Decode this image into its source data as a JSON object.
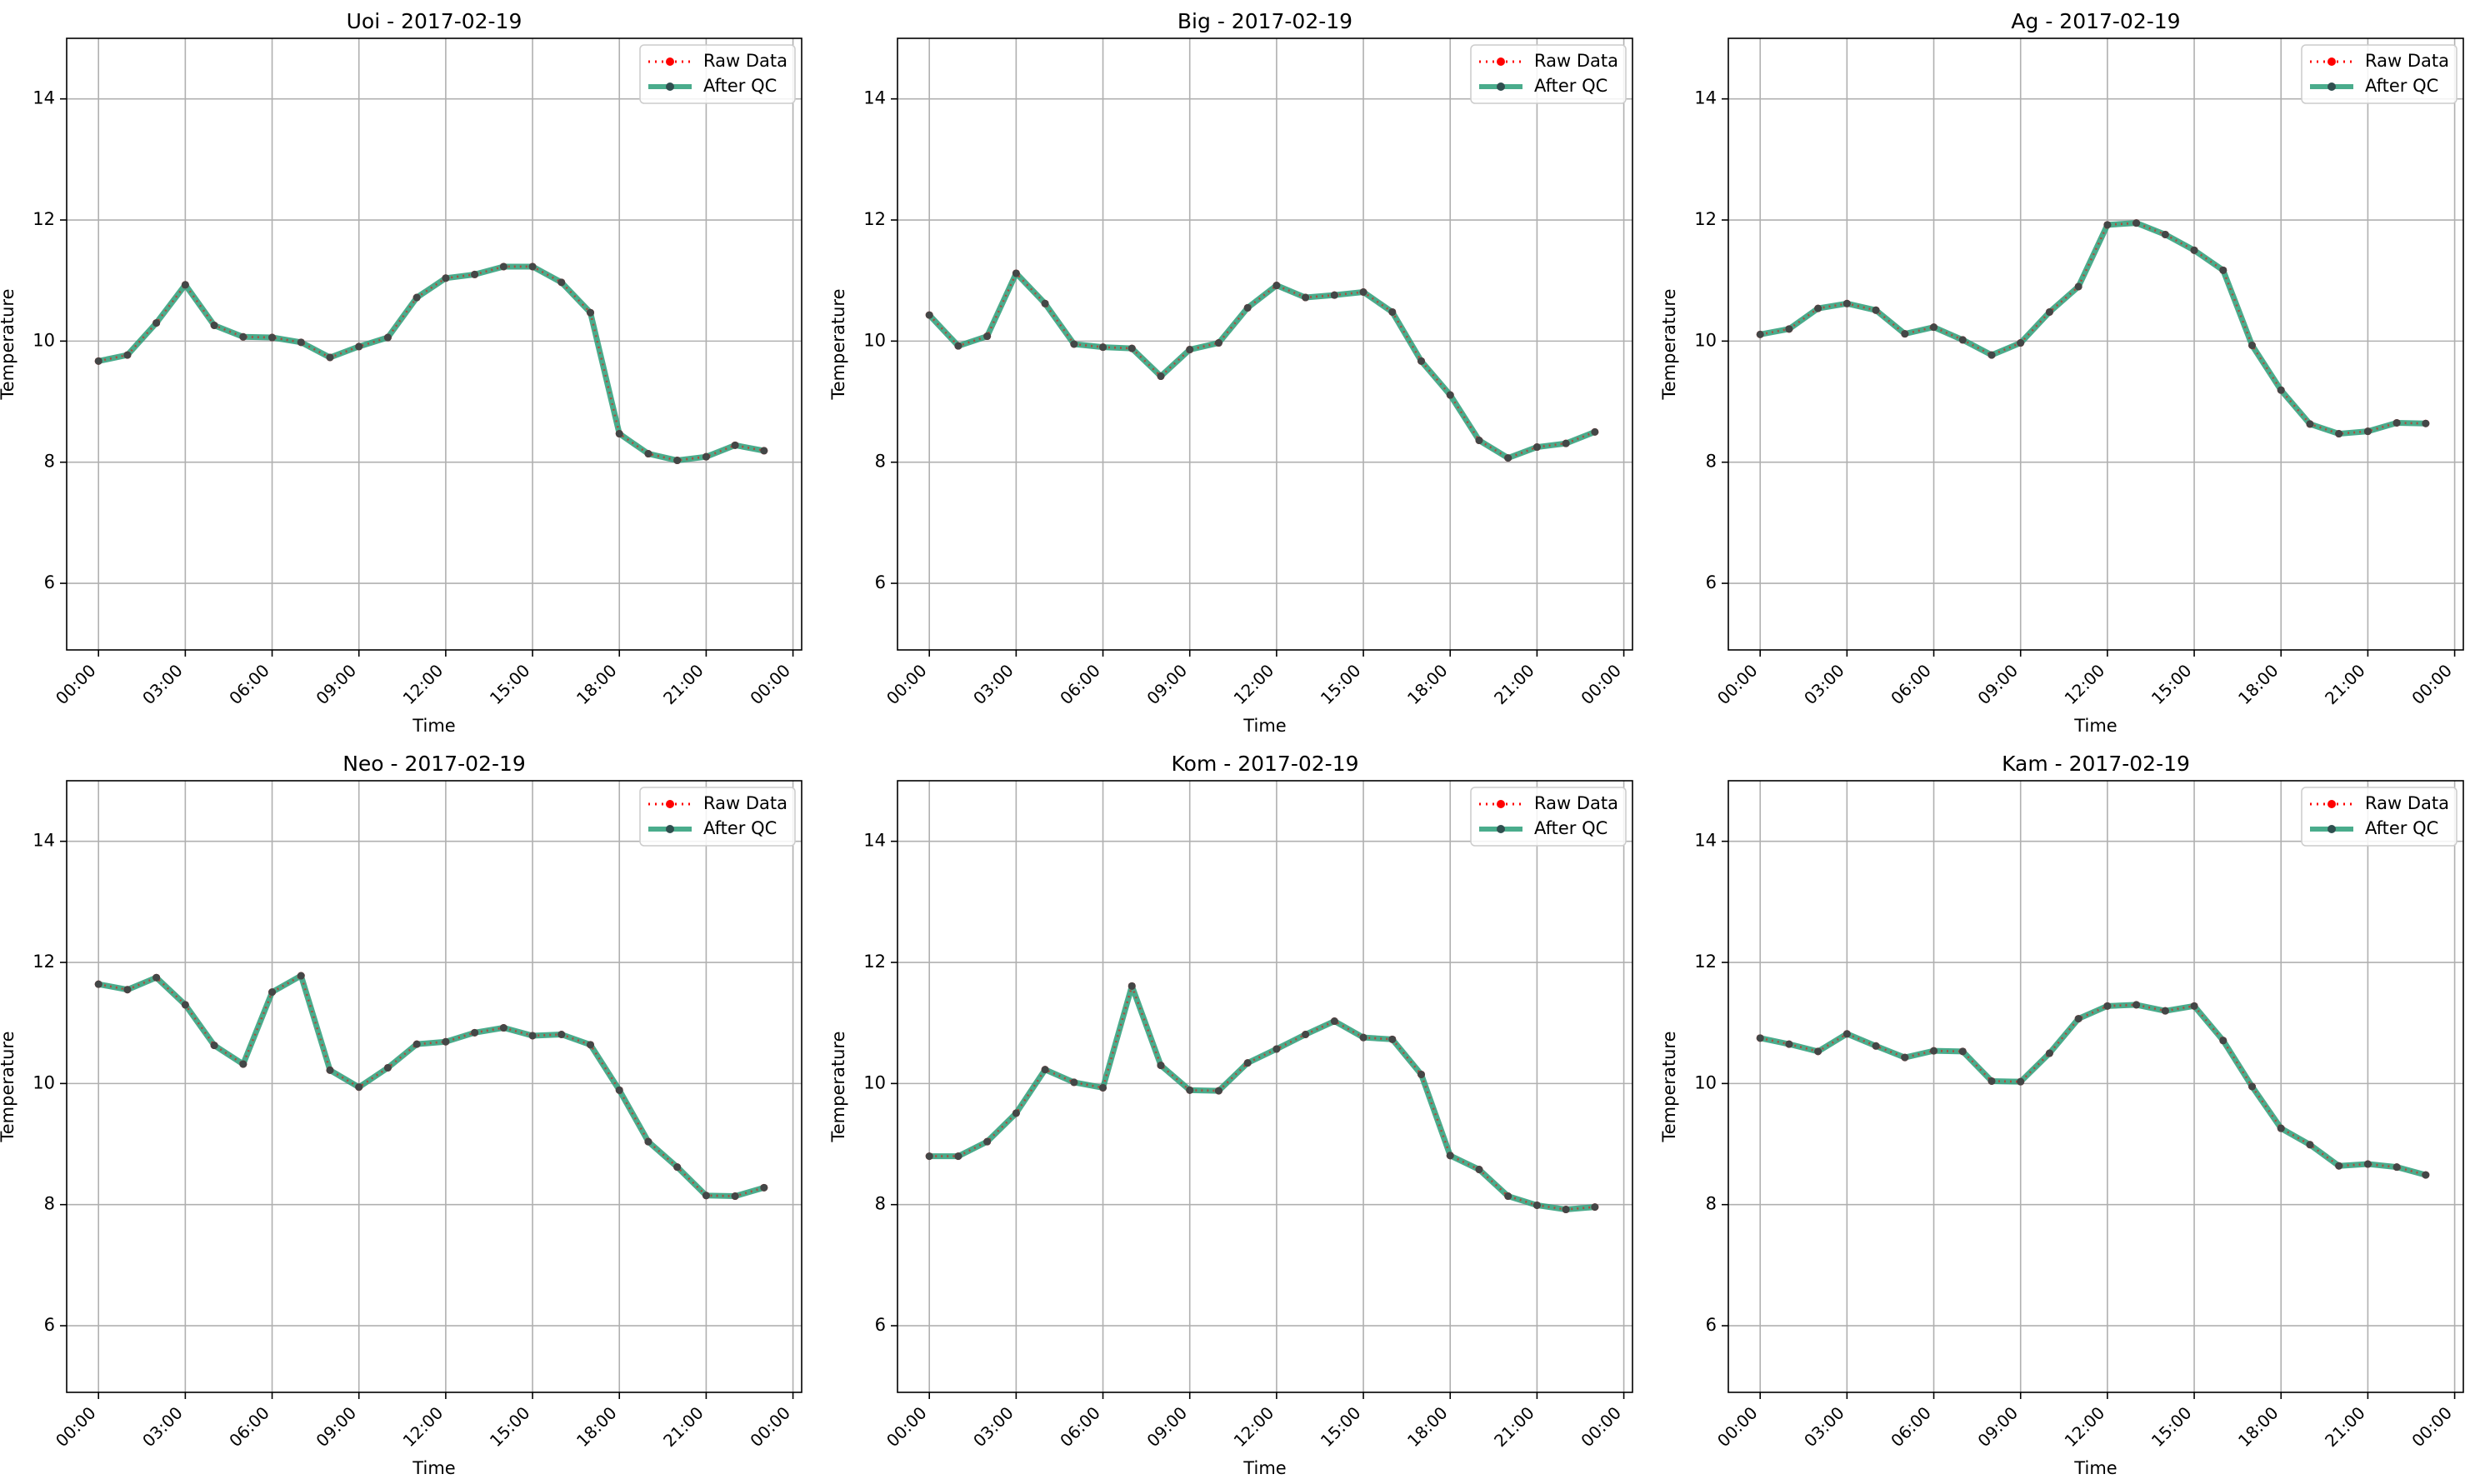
{
  "legend": {
    "raw_label": "Raw Data",
    "qc_label": "After QC"
  },
  "colors": {
    "raw": "#ff0000",
    "qc": "#2a9d78",
    "marker": "#2f4f4f",
    "grid": "#b0b0b0",
    "axis": "#000000"
  },
  "chart_data": [
    {
      "type": "line",
      "title": "Uoi - 2017-02-19",
      "xlabel": "Time",
      "ylabel": "Temperature",
      "ylim": [
        4.9,
        15
      ],
      "yticks": [
        6,
        8,
        10,
        12,
        14
      ],
      "x_ticks": [
        "00:00",
        "03:00",
        "06:00",
        "09:00",
        "12:00",
        "15:00",
        "18:00",
        "21:00",
        "00:00"
      ],
      "x_unit": "hour of day",
      "x": [
        0,
        1,
        2,
        3,
        4,
        5,
        6,
        7,
        8,
        9,
        10,
        11,
        12,
        13,
        14,
        15,
        16,
        17,
        18,
        19,
        20,
        21,
        22,
        23
      ],
      "grid": true,
      "legend_position": "top-right",
      "series": [
        {
          "name": "Raw Data",
          "values": [
            9.67,
            9.77,
            10.3,
            10.93,
            10.26,
            10.07,
            10.06,
            9.98,
            9.73,
            9.91,
            10.06,
            10.72,
            11.04,
            11.1,
            11.23,
            11.23,
            10.97,
            10.47,
            8.47,
            8.14,
            8.03,
            8.09,
            8.28,
            8.19
          ]
        },
        {
          "name": "After QC",
          "values": [
            9.67,
            9.77,
            10.3,
            10.93,
            10.26,
            10.07,
            10.06,
            9.98,
            9.73,
            9.91,
            10.06,
            10.72,
            11.04,
            11.1,
            11.23,
            11.23,
            10.97,
            10.47,
            8.47,
            8.14,
            8.03,
            8.09,
            8.28,
            8.19
          ]
        }
      ]
    },
    {
      "type": "line",
      "title": "Big - 2017-02-19",
      "xlabel": "Time",
      "ylabel": "Temperature",
      "ylim": [
        4.9,
        15
      ],
      "yticks": [
        6,
        8,
        10,
        12,
        14
      ],
      "x_ticks": [
        "00:00",
        "03:00",
        "06:00",
        "09:00",
        "12:00",
        "15:00",
        "18:00",
        "21:00",
        "00:00"
      ],
      "x_unit": "hour of day",
      "x": [
        0,
        1,
        2,
        3,
        4,
        5,
        6,
        7,
        8,
        9,
        10,
        11,
        12,
        13,
        14,
        15,
        16,
        17,
        18,
        19,
        20,
        21,
        22,
        23
      ],
      "grid": true,
      "legend_position": "top-right",
      "series": [
        {
          "name": "Raw Data",
          "values": [
            10.43,
            9.92,
            10.08,
            11.12,
            10.62,
            9.95,
            9.9,
            9.88,
            9.42,
            9.86,
            9.97,
            10.55,
            10.92,
            10.72,
            10.76,
            10.81,
            10.48,
            9.67,
            9.11,
            8.36,
            8.07,
            8.25,
            8.31,
            8.5
          ]
        },
        {
          "name": "After QC",
          "values": [
            10.43,
            9.92,
            10.08,
            11.12,
            10.62,
            9.95,
            9.9,
            9.88,
            9.42,
            9.86,
            9.97,
            10.55,
            10.92,
            10.72,
            10.76,
            10.81,
            10.48,
            9.67,
            9.11,
            8.36,
            8.07,
            8.25,
            8.31,
            8.5
          ]
        }
      ]
    },
    {
      "type": "line",
      "title": "Ag - 2017-02-19",
      "xlabel": "Time",
      "ylabel": "Temperature",
      "ylim": [
        4.9,
        15
      ],
      "yticks": [
        6,
        8,
        10,
        12,
        14
      ],
      "x_ticks": [
        "00:00",
        "03:00",
        "06:00",
        "09:00",
        "12:00",
        "15:00",
        "18:00",
        "21:00",
        "00:00"
      ],
      "x_unit": "hour of day",
      "x": [
        0,
        1,
        2,
        3,
        4,
        5,
        6,
        7,
        8,
        9,
        10,
        11,
        12,
        13,
        14,
        15,
        16,
        17,
        18,
        19,
        20,
        21,
        22,
        23
      ],
      "grid": true,
      "legend_position": "top-right",
      "series": [
        {
          "name": "Raw Data",
          "values": [
            10.11,
            10.2,
            10.54,
            10.62,
            10.51,
            10.12,
            10.23,
            10.02,
            9.77,
            9.97,
            10.48,
            10.9,
            11.92,
            11.95,
            11.76,
            11.5,
            11.17,
            9.93,
            9.19,
            8.63,
            8.47,
            8.51,
            8.65,
            8.64
          ]
        },
        {
          "name": "After QC",
          "values": [
            10.11,
            10.2,
            10.54,
            10.62,
            10.51,
            10.12,
            10.23,
            10.02,
            9.77,
            9.97,
            10.48,
            10.9,
            11.92,
            11.95,
            11.76,
            11.5,
            11.17,
            9.93,
            9.19,
            8.63,
            8.47,
            8.51,
            8.65,
            8.64
          ]
        }
      ]
    },
    {
      "type": "line",
      "title": "Neo - 2017-02-19",
      "xlabel": "Time",
      "ylabel": "Temperature",
      "ylim": [
        4.9,
        15
      ],
      "yticks": [
        6,
        8,
        10,
        12,
        14
      ],
      "x_ticks": [
        "00:00",
        "03:00",
        "06:00",
        "09:00",
        "12:00",
        "15:00",
        "18:00",
        "21:00",
        "00:00"
      ],
      "x_unit": "hour of day",
      "x": [
        0,
        1,
        2,
        3,
        4,
        5,
        6,
        7,
        8,
        9,
        10,
        11,
        12,
        13,
        14,
        15,
        16,
        17,
        18,
        19,
        20,
        21,
        22,
        23
      ],
      "grid": true,
      "legend_position": "top-right",
      "series": [
        {
          "name": "Raw Data",
          "values": [
            11.64,
            11.55,
            11.75,
            11.3,
            10.63,
            10.32,
            11.51,
            11.78,
            10.22,
            9.94,
            10.26,
            10.65,
            10.69,
            10.84,
            10.92,
            10.79,
            10.81,
            10.64,
            9.89,
            9.04,
            8.62,
            8.15,
            8.14,
            8.28
          ]
        },
        {
          "name": "After QC",
          "values": [
            11.64,
            11.55,
            11.75,
            11.3,
            10.63,
            10.32,
            11.51,
            11.78,
            10.22,
            9.94,
            10.26,
            10.65,
            10.69,
            10.84,
            10.92,
            10.79,
            10.81,
            10.64,
            9.89,
            9.04,
            8.62,
            8.15,
            8.14,
            8.28
          ]
        }
      ]
    },
    {
      "type": "line",
      "title": "Kom - 2017-02-19",
      "xlabel": "Time",
      "ylabel": "Temperature",
      "ylim": [
        4.9,
        15
      ],
      "yticks": [
        6,
        8,
        10,
        12,
        14
      ],
      "x_ticks": [
        "00:00",
        "03:00",
        "06:00",
        "09:00",
        "12:00",
        "15:00",
        "18:00",
        "21:00",
        "00:00"
      ],
      "x_unit": "hour of day",
      "x": [
        0,
        1,
        2,
        3,
        4,
        5,
        6,
        7,
        8,
        9,
        10,
        11,
        12,
        13,
        14,
        15,
        16,
        17,
        18,
        19,
        20,
        21,
        22,
        23
      ],
      "grid": true,
      "legend_position": "top-right",
      "series": [
        {
          "name": "Raw Data",
          "values": [
            8.8,
            8.8,
            9.04,
            9.51,
            10.23,
            10.02,
            9.93,
            11.61,
            10.3,
            9.89,
            9.88,
            10.34,
            10.57,
            10.81,
            11.03,
            10.76,
            10.73,
            10.15,
            8.81,
            8.58,
            8.14,
            7.99,
            7.92,
            7.96
          ]
        },
        {
          "name": "After QC",
          "values": [
            8.8,
            8.8,
            9.04,
            9.51,
            10.23,
            10.02,
            9.93,
            11.61,
            10.3,
            9.89,
            9.88,
            10.34,
            10.57,
            10.81,
            11.03,
            10.76,
            10.73,
            10.15,
            8.81,
            8.58,
            8.14,
            7.99,
            7.92,
            7.96
          ]
        }
      ]
    },
    {
      "type": "line",
      "title": "Kam - 2017-02-19",
      "xlabel": "Time",
      "ylabel": "Temperature",
      "ylim": [
        4.9,
        15
      ],
      "yticks": [
        6,
        8,
        10,
        12,
        14
      ],
      "x_ticks": [
        "00:00",
        "03:00",
        "06:00",
        "09:00",
        "12:00",
        "15:00",
        "18:00",
        "21:00",
        "00:00"
      ],
      "x_unit": "hour of day",
      "x": [
        0,
        1,
        2,
        3,
        4,
        5,
        6,
        7,
        8,
        9,
        10,
        11,
        12,
        13,
        14,
        15,
        16,
        17,
        18,
        19,
        20,
        21,
        22,
        23
      ],
      "grid": true,
      "legend_position": "top-right",
      "series": [
        {
          "name": "Raw Data",
          "values": [
            10.75,
            10.65,
            10.53,
            10.82,
            10.62,
            10.43,
            10.54,
            10.53,
            10.04,
            10.03,
            10.5,
            11.07,
            11.28,
            11.3,
            11.2,
            11.28,
            10.71,
            9.95,
            9.26,
            8.99,
            8.64,
            8.67,
            8.62,
            8.49
          ]
        },
        {
          "name": "After QC",
          "values": [
            10.75,
            10.65,
            10.53,
            10.82,
            10.62,
            10.43,
            10.54,
            10.53,
            10.04,
            10.03,
            10.5,
            11.07,
            11.28,
            11.3,
            11.2,
            11.28,
            10.71,
            9.95,
            9.26,
            8.99,
            8.64,
            8.67,
            8.62,
            8.49
          ]
        }
      ]
    }
  ]
}
